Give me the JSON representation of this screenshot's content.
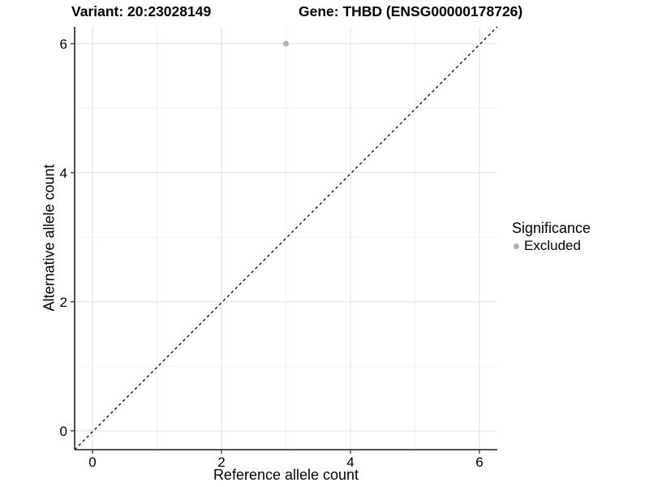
{
  "chart_data": {
    "type": "scatter",
    "title_left": "Variant: 20:23028149",
    "title_right": "Gene: THBD (ENSG00000178726)",
    "xlabel": "Reference allele count",
    "ylabel": "Alternative allele count",
    "xlim": [
      -0.28,
      6.28
    ],
    "ylim": [
      -0.3,
      6.26
    ],
    "x_ticks": [
      0,
      2,
      4,
      6
    ],
    "y_ticks": [
      0,
      2,
      4,
      6
    ],
    "x_minor": [
      1,
      3,
      5
    ],
    "y_minor": [
      1,
      3,
      5
    ],
    "grid": "major+minor",
    "series": [
      {
        "name": "Excluded",
        "color": "#b0b0b0",
        "points": [
          {
            "x": 3,
            "y": 6
          }
        ]
      }
    ],
    "reference_line": {
      "type": "identity y=x",
      "style": "dashed",
      "color": "#000000"
    },
    "legend": {
      "title": "Significance",
      "position": "right",
      "items": [
        {
          "label": "Excluded",
          "color": "#b0b0b0"
        }
      ]
    },
    "colors": {
      "background": "#ffffff",
      "grid_major": "#e3e3e3",
      "grid_minor": "#f0f0f0",
      "axis": "#3a3a3a",
      "text": "#000000",
      "refline": "#000000"
    }
  }
}
